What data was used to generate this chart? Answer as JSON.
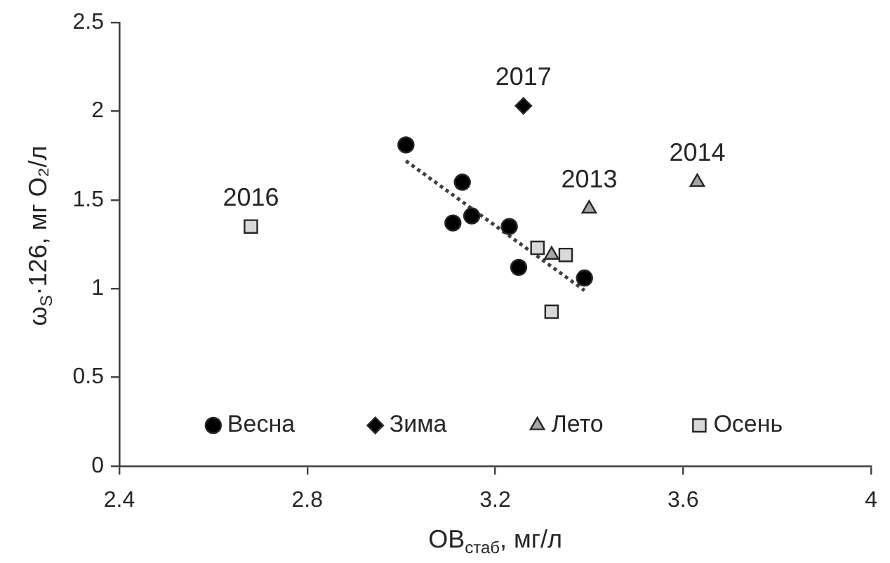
{
  "chart_data": {
    "type": "scatter",
    "xlabel": "ОВ$_{стаб}$, мг/л",
    "ylabel": "ω$_{S}$·126, мг O₂/л",
    "xlim": [
      2.4,
      4
    ],
    "xticks": [
      2.4,
      2.8,
      3.2,
      3.6,
      4
    ],
    "ylim": [
      0,
      2.5
    ],
    "yticks": [
      0,
      0.5,
      1,
      1.5,
      2,
      2.5
    ],
    "grid": false,
    "legend": "bottom",
    "series": [
      {
        "name": "Весна",
        "color": "#000000",
        "marker": "circle",
        "x": [
          3.01,
          3.13,
          3.11,
          3.15,
          3.23,
          3.25,
          3.39
        ],
        "values": [
          1.81,
          1.6,
          1.37,
          1.41,
          1.35,
          1.12,
          1.06
        ]
      },
      {
        "name": "Зима",
        "color": "#000000",
        "marker": "diamond",
        "x": [
          3.26
        ],
        "values": [
          2.03
        ]
      },
      {
        "name": "Лето",
        "color": "#a6a6a6",
        "marker": "triangle",
        "x": [
          3.32,
          3.4,
          3.63
        ],
        "values": [
          1.19,
          1.45,
          1.6
        ]
      },
      {
        "name": "Осень",
        "color": "#d9d9d9",
        "marker": "square",
        "x": [
          2.68,
          3.29,
          3.35,
          3.32
        ],
        "values": [
          1.35,
          1.23,
          1.19,
          0.87
        ]
      },
      {
        "type": "line",
        "color": "#404040",
        "line_style": "dotted",
        "marker": "none",
        "x": [
          3.01,
          3.39
        ],
        "values": [
          1.72,
          0.99
        ]
      }
    ],
    "annotations": [
      {
        "text": "2016",
        "x": 2.68,
        "y": 1.35
      },
      {
        "text": "2017",
        "x": 3.26,
        "y": 2.03
      },
      {
        "text": "2013",
        "x": 3.4,
        "y": 1.45
      },
      {
        "text": "2014",
        "x": 3.63,
        "y": 1.6
      }
    ]
  }
}
